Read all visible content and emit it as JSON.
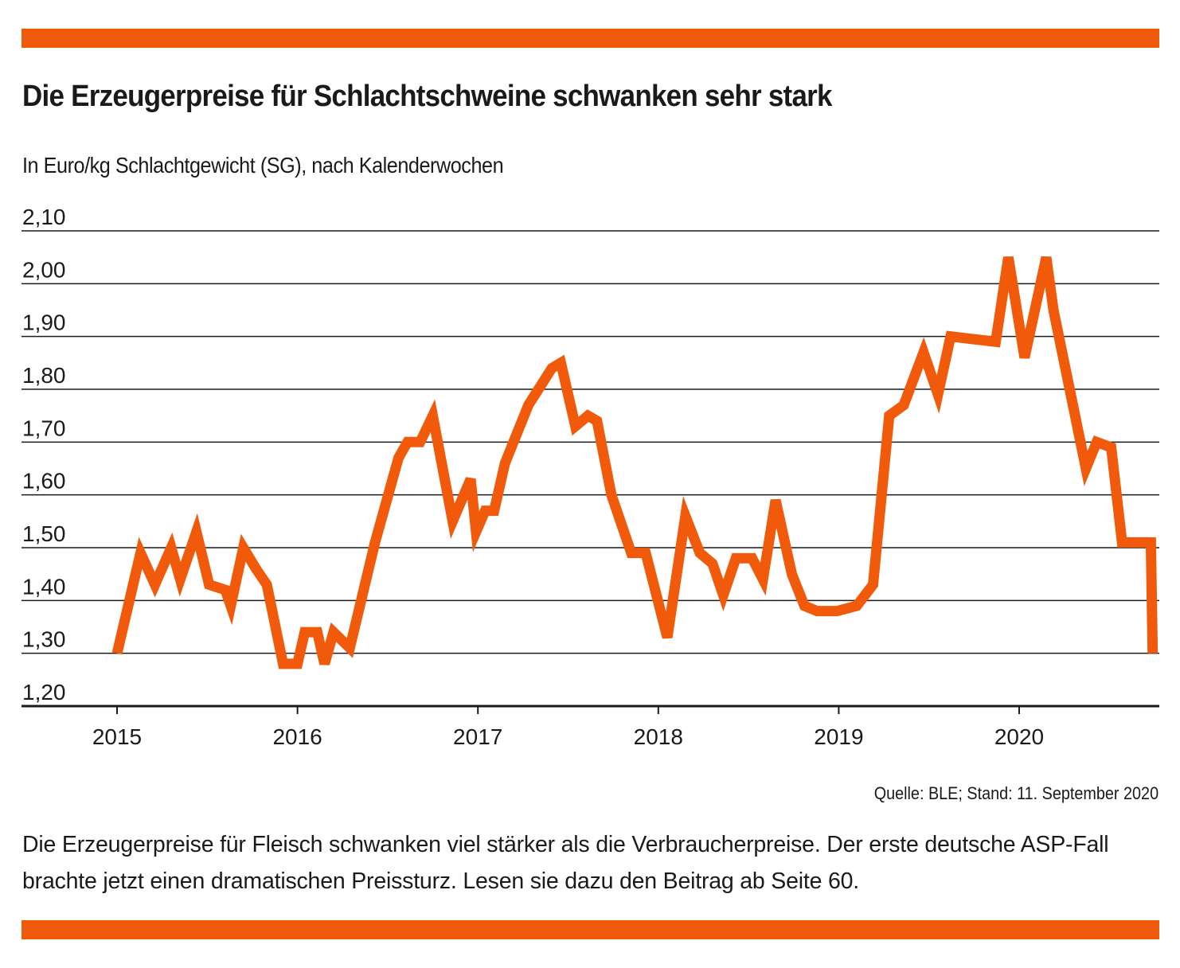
{
  "colors": {
    "accent": "#f05a0a",
    "grid": "#1a1a1a",
    "text": "#1a1a1a"
  },
  "header": {
    "title": "Die Erzeugerpreise für Schlachtschweine schwanken sehr stark",
    "subtitle": "In Euro/kg Schlachtgewicht (SG), nach Kalenderwochen"
  },
  "footer": {
    "source": "Quelle: BLE; Stand: 11. September 2020",
    "caption": "Die Erzeugerpreise für Fleisch schwanken viel stärker als die Verbraucherpreise. Der erste deutsche ASP-Fall brachte jetzt einen dramatischen Preissturz. Lesen sie dazu den Beitrag ab Seite  60."
  },
  "chart_data": {
    "type": "line",
    "title": "Die Erzeugerpreise für Schlachtschweine schwanken sehr stark",
    "ylabel": "In Euro/kg Schlachtgewicht (SG), nach Kalenderwochen",
    "xlabel": "",
    "ylim": [
      1.2,
      2.1
    ],
    "xlim": [
      2014.47,
      2020.77
    ],
    "grid": true,
    "y_ticks": [
      {
        "value": 2.1,
        "label": "2,10"
      },
      {
        "value": 2.0,
        "label": "2,00"
      },
      {
        "value": 1.9,
        "label": "1,90"
      },
      {
        "value": 1.8,
        "label": "1,80"
      },
      {
        "value": 1.7,
        "label": "1,70"
      },
      {
        "value": 1.6,
        "label": "1,60"
      },
      {
        "value": 1.5,
        "label": "1,50"
      },
      {
        "value": 1.4,
        "label": "1,40"
      },
      {
        "value": 1.3,
        "label": "1,30"
      },
      {
        "value": 1.2,
        "label": "1,20"
      }
    ],
    "x_ticks": [
      {
        "value": 2015,
        "label": "2015"
      },
      {
        "value": 2016,
        "label": "2016"
      },
      {
        "value": 2017,
        "label": "2017"
      },
      {
        "value": 2018,
        "label": "2018"
      },
      {
        "value": 2019,
        "label": "2019"
      },
      {
        "value": 2020,
        "label": "2020"
      }
    ],
    "series": [
      {
        "color": "#f05a0a",
        "points": [
          [
            2015.0,
            1.3
          ],
          [
            2015.13,
            1.49
          ],
          [
            2015.21,
            1.43
          ],
          [
            2015.3,
            1.5
          ],
          [
            2015.35,
            1.44
          ],
          [
            2015.44,
            1.53
          ],
          [
            2015.51,
            1.43
          ],
          [
            2015.6,
            1.42
          ],
          [
            2015.63,
            1.39
          ],
          [
            2015.7,
            1.5
          ],
          [
            2015.77,
            1.46
          ],
          [
            2015.83,
            1.43
          ],
          [
            2015.92,
            1.28
          ],
          [
            2016.0,
            1.28
          ],
          [
            2016.04,
            1.34
          ],
          [
            2016.11,
            1.34
          ],
          [
            2016.15,
            1.28
          ],
          [
            2016.2,
            1.34
          ],
          [
            2016.29,
            1.31
          ],
          [
            2016.43,
            1.51
          ],
          [
            2016.56,
            1.67
          ],
          [
            2016.61,
            1.7
          ],
          [
            2016.68,
            1.7
          ],
          [
            2016.75,
            1.75
          ],
          [
            2016.86,
            1.55
          ],
          [
            2016.96,
            1.63
          ],
          [
            2016.99,
            1.53
          ],
          [
            2017.04,
            1.57
          ],
          [
            2017.09,
            1.57
          ],
          [
            2017.15,
            1.66
          ],
          [
            2017.28,
            1.77
          ],
          [
            2017.41,
            1.84
          ],
          [
            2017.46,
            1.85
          ],
          [
            2017.54,
            1.73
          ],
          [
            2017.61,
            1.75
          ],
          [
            2017.66,
            1.74
          ],
          [
            2017.74,
            1.6
          ],
          [
            2017.85,
            1.49
          ],
          [
            2017.93,
            1.49
          ],
          [
            2018.05,
            1.33
          ],
          [
            2018.15,
            1.56
          ],
          [
            2018.23,
            1.49
          ],
          [
            2018.3,
            1.47
          ],
          [
            2018.36,
            1.41
          ],
          [
            2018.43,
            1.48
          ],
          [
            2018.52,
            1.48
          ],
          [
            2018.58,
            1.44
          ],
          [
            2018.65,
            1.59
          ],
          [
            2018.74,
            1.45
          ],
          [
            2018.81,
            1.39
          ],
          [
            2018.88,
            1.38
          ],
          [
            2018.99,
            1.38
          ],
          [
            2019.1,
            1.39
          ],
          [
            2019.19,
            1.43
          ],
          [
            2019.28,
            1.75
          ],
          [
            2019.36,
            1.77
          ],
          [
            2019.47,
            1.87
          ],
          [
            2019.55,
            1.79
          ],
          [
            2019.62,
            1.9
          ],
          [
            2019.87,
            1.89
          ],
          [
            2019.94,
            2.05
          ],
          [
            2020.03,
            1.86
          ],
          [
            2020.15,
            2.05
          ],
          [
            2020.19,
            1.95
          ],
          [
            2020.37,
            1.65
          ],
          [
            2020.43,
            1.7
          ],
          [
            2020.51,
            1.69
          ],
          [
            2020.57,
            1.51
          ],
          [
            2020.68,
            1.51
          ],
          [
            2020.73,
            1.51
          ],
          [
            2020.74,
            1.3
          ]
        ]
      }
    ]
  }
}
